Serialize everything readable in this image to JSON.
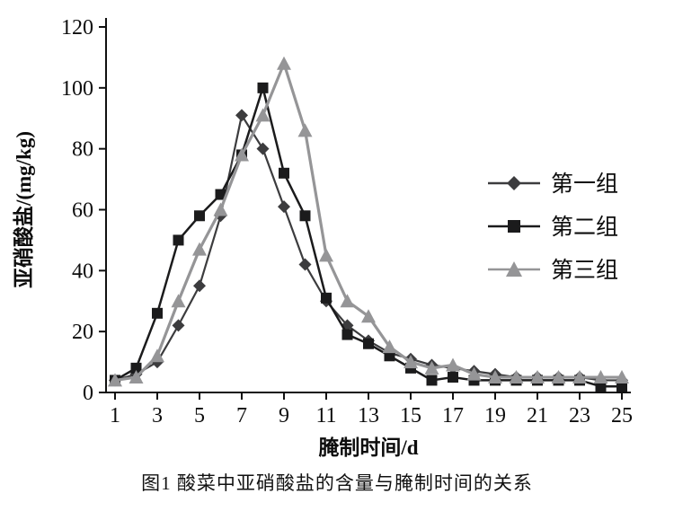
{
  "caption": "图1  酸菜中亚硝酸盐的含量与腌制时间的关系",
  "chart_data": {
    "type": "line",
    "title": "",
    "xlabel": "腌制时间/d",
    "ylabel": "亚硝酸盐/(mg/kg)",
    "ylim": [
      0,
      120
    ],
    "ytick_step": 20,
    "xticks": [
      1,
      3,
      5,
      7,
      9,
      11,
      13,
      15,
      17,
      19,
      21,
      23,
      25
    ],
    "x": [
      1,
      2,
      3,
      4,
      5,
      6,
      7,
      8,
      9,
      10,
      11,
      12,
      13,
      14,
      15,
      16,
      17,
      18,
      19,
      20,
      21,
      22,
      23,
      24,
      25
    ],
    "grid": false,
    "legend_position": "right",
    "series": [
      {
        "name": "第一组",
        "marker": "diamond",
        "color": "#3c3c3e",
        "line_width": 2.2,
        "marker_size": 7,
        "values": [
          4,
          6,
          10,
          22,
          35,
          58,
          91,
          80,
          61,
          42,
          30,
          22,
          17,
          13,
          11,
          9,
          8,
          7,
          6,
          5,
          5,
          5,
          5,
          4,
          4
        ]
      },
      {
        "name": "第二组",
        "marker": "square",
        "color": "#1b1b1c",
        "line_width": 2.5,
        "marker_size": 7,
        "values": [
          4,
          8,
          26,
          50,
          58,
          65,
          78,
          100,
          72,
          58,
          31,
          19,
          16,
          12,
          8,
          4,
          5,
          4,
          4,
          4,
          4,
          4,
          4,
          2,
          2
        ]
      },
      {
        "name": "第三组",
        "marker": "triangle",
        "color": "#959597",
        "line_width": 3.2,
        "marker_size": 8,
        "values": [
          4,
          5,
          12,
          30,
          47,
          60,
          78,
          91,
          108,
          86,
          45,
          30,
          25,
          15,
          10,
          8,
          9,
          6,
          5,
          5,
          5,
          5,
          5,
          5,
          5
        ]
      }
    ]
  }
}
